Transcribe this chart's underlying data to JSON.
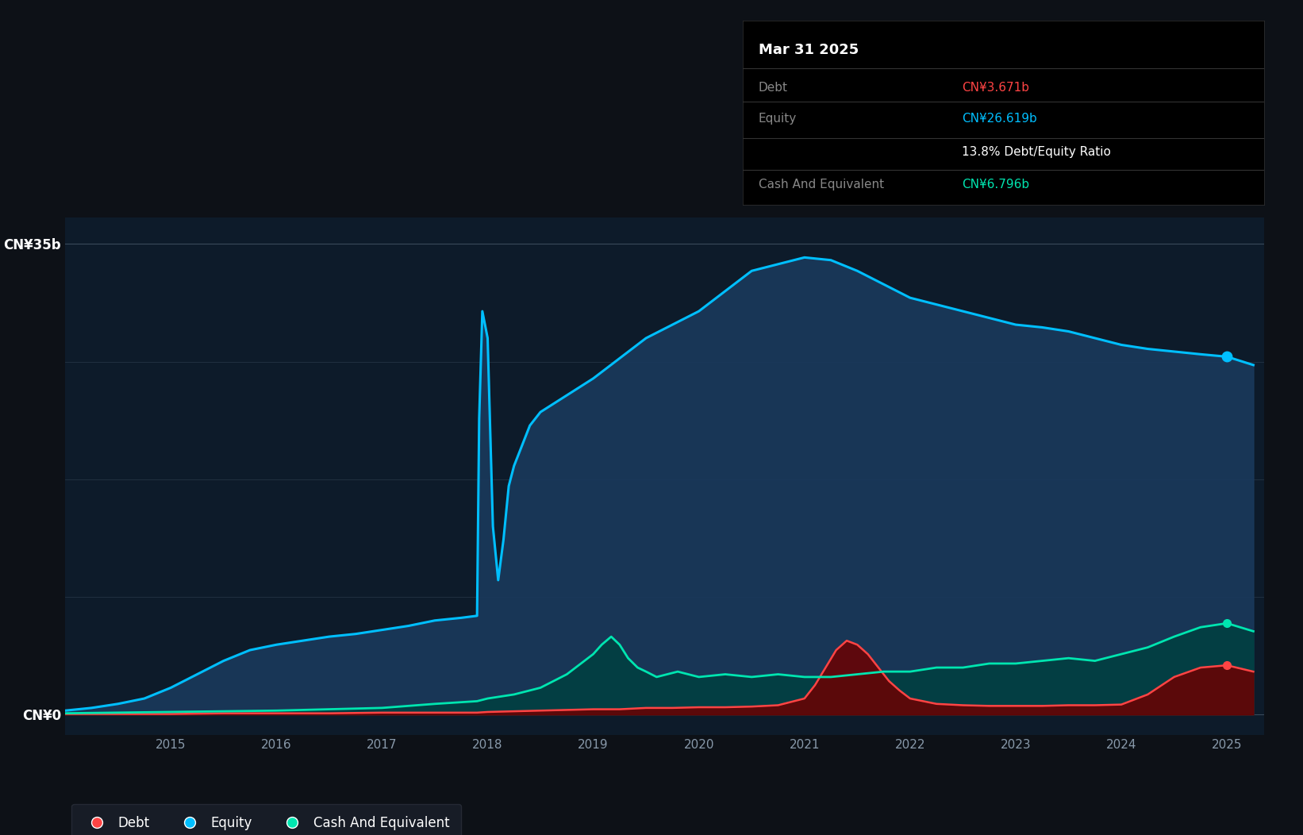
{
  "bg_color": "#0d1117",
  "plot_bg_color": "#0d1b2a",
  "grid_color": "#2a3a4a",
  "ylim": [
    -1.5,
    37
  ],
  "tooltip": {
    "date": "Mar 31 2025",
    "debt_label": "Debt",
    "debt_value": "CN¥3.671b",
    "equity_label": "Equity",
    "equity_value": "CN¥26.619b",
    "ratio": "13.8% Debt/Equity Ratio",
    "cash_label": "Cash And Equivalent",
    "cash_value": "CN¥6.796b"
  },
  "equity_color": "#00bfff",
  "equity_fill": "#1a3a5c",
  "debt_color": "#ff4444",
  "debt_fill": "#6b0000",
  "cash_color": "#00e5b0",
  "cash_fill": "#004040",
  "equity_x": [
    2014.0,
    2014.25,
    2014.5,
    2014.75,
    2015.0,
    2015.25,
    2015.5,
    2015.75,
    2016.0,
    2016.25,
    2016.5,
    2016.75,
    2017.0,
    2017.25,
    2017.5,
    2017.75,
    2017.85,
    2017.9,
    2017.92,
    2017.95,
    2018.0,
    2018.05,
    2018.1,
    2018.15,
    2018.2,
    2018.25,
    2018.3,
    2018.35,
    2018.4,
    2018.45,
    2018.5,
    2018.6,
    2018.7,
    2018.8,
    2018.9,
    2019.0,
    2019.25,
    2019.5,
    2019.75,
    2020.0,
    2020.25,
    2020.5,
    2020.75,
    2021.0,
    2021.25,
    2021.5,
    2021.75,
    2022.0,
    2022.25,
    2022.5,
    2022.75,
    2023.0,
    2023.25,
    2023.5,
    2023.75,
    2024.0,
    2024.25,
    2024.5,
    2024.75,
    2025.0,
    2025.25
  ],
  "equity_y": [
    0.3,
    0.5,
    0.8,
    1.2,
    2.0,
    3.0,
    4.0,
    4.8,
    5.2,
    5.5,
    5.8,
    6.0,
    6.3,
    6.6,
    7.0,
    7.2,
    7.3,
    7.35,
    22.0,
    30.0,
    28.0,
    14.0,
    10.0,
    13.0,
    17.0,
    18.5,
    19.5,
    20.5,
    21.5,
    22.0,
    22.5,
    23.0,
    23.5,
    24.0,
    24.5,
    25.0,
    26.5,
    28.0,
    29.0,
    30.0,
    31.5,
    33.0,
    33.5,
    34.0,
    33.8,
    33.0,
    32.0,
    31.0,
    30.5,
    30.0,
    29.5,
    29.0,
    28.8,
    28.5,
    28.0,
    27.5,
    27.2,
    27.0,
    26.8,
    26.619,
    26.0
  ],
  "debt_x": [
    2014.0,
    2014.5,
    2015.0,
    2015.5,
    2016.0,
    2016.5,
    2017.0,
    2017.5,
    2017.9,
    2018.0,
    2018.25,
    2018.5,
    2018.75,
    2019.0,
    2019.25,
    2019.5,
    2019.75,
    2020.0,
    2020.25,
    2020.5,
    2020.75,
    2021.0,
    2021.1,
    2021.2,
    2021.3,
    2021.4,
    2021.5,
    2021.6,
    2021.7,
    2021.8,
    2021.9,
    2022.0,
    2022.25,
    2022.5,
    2022.75,
    2023.0,
    2023.25,
    2023.5,
    2023.75,
    2024.0,
    2024.25,
    2024.5,
    2024.75,
    2025.0,
    2025.25
  ],
  "debt_y": [
    0.05,
    0.05,
    0.05,
    0.1,
    0.1,
    0.1,
    0.15,
    0.15,
    0.15,
    0.2,
    0.25,
    0.3,
    0.35,
    0.4,
    0.4,
    0.5,
    0.5,
    0.55,
    0.55,
    0.6,
    0.7,
    1.2,
    2.2,
    3.5,
    4.8,
    5.5,
    5.2,
    4.5,
    3.5,
    2.5,
    1.8,
    1.2,
    0.8,
    0.7,
    0.65,
    0.65,
    0.65,
    0.7,
    0.7,
    0.75,
    1.5,
    2.8,
    3.5,
    3.671,
    3.2
  ],
  "cash_x": [
    2014.0,
    2014.5,
    2015.0,
    2015.5,
    2016.0,
    2016.5,
    2017.0,
    2017.5,
    2017.9,
    2018.0,
    2018.25,
    2018.5,
    2018.75,
    2019.0,
    2019.08,
    2019.17,
    2019.25,
    2019.33,
    2019.42,
    2019.5,
    2019.6,
    2019.7,
    2019.8,
    2019.9,
    2020.0,
    2020.25,
    2020.5,
    2020.75,
    2021.0,
    2021.25,
    2021.5,
    2021.75,
    2022.0,
    2022.25,
    2022.5,
    2022.75,
    2023.0,
    2023.25,
    2023.5,
    2023.75,
    2024.0,
    2024.25,
    2024.5,
    2024.75,
    2025.0,
    2025.25
  ],
  "cash_y": [
    0.1,
    0.15,
    0.2,
    0.25,
    0.3,
    0.4,
    0.5,
    0.8,
    1.0,
    1.2,
    1.5,
    2.0,
    3.0,
    4.5,
    5.2,
    5.8,
    5.2,
    4.2,
    3.5,
    3.2,
    2.8,
    3.0,
    3.2,
    3.0,
    2.8,
    3.0,
    2.8,
    3.0,
    2.8,
    2.8,
    3.0,
    3.2,
    3.2,
    3.5,
    3.5,
    3.8,
    3.8,
    4.0,
    4.2,
    4.0,
    4.5,
    5.0,
    5.8,
    6.5,
    6.796,
    6.2
  ]
}
